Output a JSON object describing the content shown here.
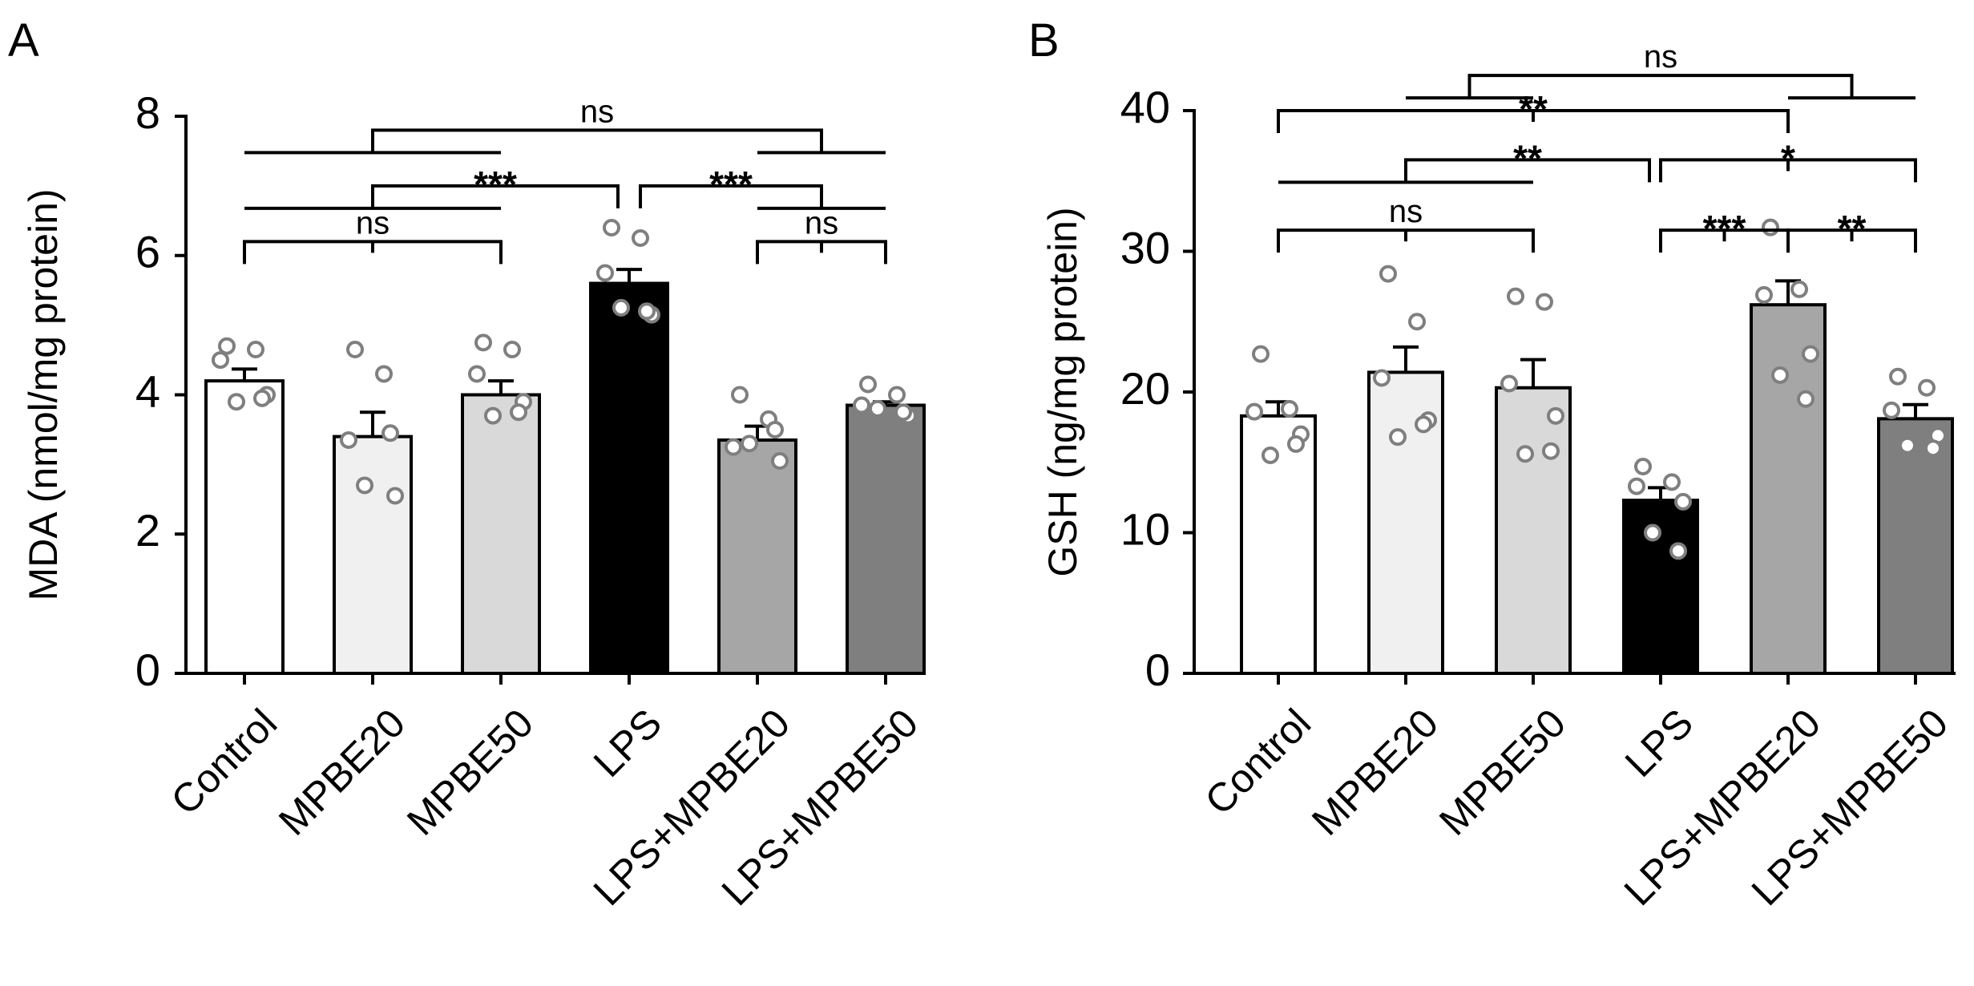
{
  "chart_data": [
    {
      "panel": "A",
      "type": "bar",
      "title": "",
      "xlabel": "",
      "ylabel": "MDA (nmol/mg protein)",
      "ylim": [
        0,
        8
      ],
      "yticks": [
        0,
        2,
        4,
        6,
        8
      ],
      "grid": false,
      "categories": [
        "Control",
        "MPBE20",
        "MPBE50",
        "LPS",
        "LPS+MPBE20",
        "LPS+MPBE50"
      ],
      "values": [
        4.2,
        3.4,
        4.0,
        5.6,
        3.35,
        3.85
      ],
      "errors": [
        0.17,
        0.35,
        0.2,
        0.2,
        0.2,
        0.05
      ],
      "bar_colors": [
        "#ffffff",
        "#f0f0f0",
        "#d9d9d9",
        "#000000",
        "#a6a6a6",
        "#7f7f7f"
      ],
      "points": [
        [
          4.7,
          4.65,
          4.5,
          4.0,
          3.9,
          3.95
        ],
        [
          4.65,
          4.3,
          3.35,
          2.55,
          2.7,
          3.45
        ],
        [
          4.75,
          4.65,
          4.3,
          3.9,
          3.7,
          3.75
        ],
        [
          6.4,
          6.25,
          5.75,
          5.15,
          5.25,
          5.2
        ],
        [
          4.0,
          3.65,
          3.25,
          3.05,
          3.3,
          3.5
        ],
        [
          4.15,
          4.0,
          3.85,
          3.7,
          3.8,
          3.75
        ]
      ],
      "comparisons": [
        {
          "type": "pair",
          "from": 0,
          "to": 2,
          "y": 6.2,
          "label": "ns"
        },
        {
          "type": "pair",
          "from": 4,
          "to": 5,
          "y": 6.2,
          "label": "ns"
        },
        {
          "type": "group",
          "leftFrom": 0,
          "leftTo": 2,
          "y": 7.0,
          "target": 3,
          "label": "***"
        },
        {
          "type": "group",
          "leftFrom": 4,
          "leftTo": 5,
          "y": 7.0,
          "target": 3,
          "label": "***",
          "fromRight": true
        },
        {
          "type": "span",
          "leftFrom": 0,
          "leftTo": 2,
          "rightFrom": 4,
          "rightTo": 5,
          "y": 7.8,
          "label": "ns"
        }
      ]
    },
    {
      "panel": "B",
      "type": "bar",
      "title": "",
      "xlabel": "",
      "ylabel": "GSH (ng/mg protein)",
      "ylim": [
        0,
        40
      ],
      "yticks": [
        0,
        10,
        20,
        30,
        40
      ],
      "grid": false,
      "categories": [
        "Control",
        "MPBE20",
        "MPBE50",
        "LPS",
        "LPS+MPBE20",
        "LPS+MPBE50"
      ],
      "values": [
        18.3,
        21.4,
        20.3,
        12.3,
        26.2,
        18.1
      ],
      "errors": [
        1.0,
        1.8,
        2.0,
        0.9,
        1.7,
        1.0
      ],
      "bar_colors": [
        "#ffffff",
        "#f0f0f0",
        "#d9d9d9",
        "#000000",
        "#a6a6a6",
        "#7f7f7f"
      ],
      "points": [
        [
          22.7,
          18.8,
          18.6,
          17.0,
          15.5,
          16.3
        ],
        [
          28.4,
          25.0,
          21.0,
          18.0,
          16.8,
          17.7
        ],
        [
          26.8,
          26.4,
          20.6,
          18.3,
          15.6,
          15.8
        ],
        [
          14.7,
          13.6,
          13.3,
          12.2,
          10.0,
          8.7
        ],
        [
          31.7,
          27.3,
          26.9,
          22.7,
          21.2,
          19.5
        ],
        [
          21.1,
          20.3,
          18.7,
          16.9,
          16.2,
          16.0
        ]
      ],
      "comparisons": [
        {
          "type": "pair",
          "from": 0,
          "to": 2,
          "y": 31.5,
          "label": "ns"
        },
        {
          "type": "pair",
          "from": 3,
          "to": 4,
          "y": 31.5,
          "label": "***"
        },
        {
          "type": "pair",
          "from": 4,
          "to": 5,
          "y": 31.5,
          "label": "**"
        },
        {
          "type": "group",
          "leftFrom": 0,
          "leftTo": 2,
          "y": 36.5,
          "target": 3,
          "label": "**"
        },
        {
          "type": "pair",
          "from": 3,
          "to": 5,
          "y": 36.5,
          "label": "*"
        },
        {
          "type": "pair",
          "from": 0,
          "to": 4,
          "y": 40.0,
          "label": "**"
        },
        {
          "type": "span",
          "leftFrom": 1,
          "leftTo": 2,
          "rightFrom": 4,
          "rightTo": 5,
          "y": 42.5,
          "label": "ns"
        }
      ]
    }
  ]
}
